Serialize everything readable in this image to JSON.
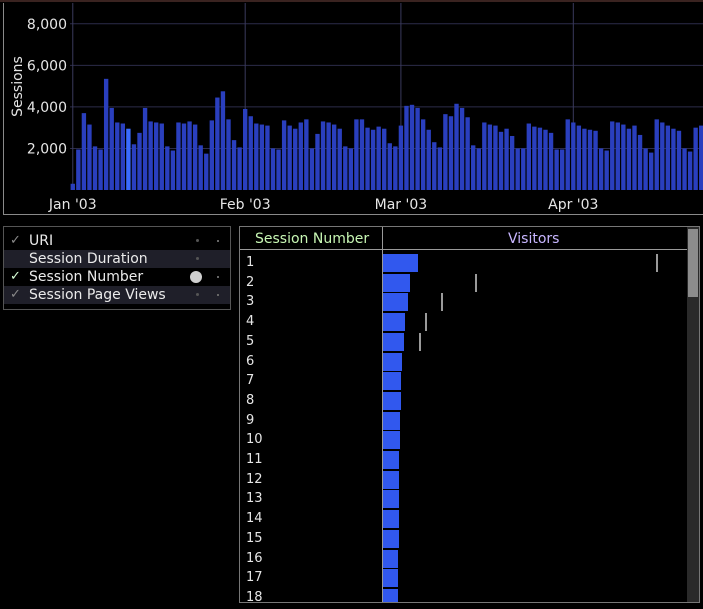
{
  "chart_data": {
    "type": "bar",
    "ylabel": "Sessions",
    "yticks": [
      "8,000",
      "6,000",
      "4,000",
      "2,000"
    ],
    "ytick_values": [
      8000,
      6000,
      4000,
      2000
    ],
    "ylim": [
      0,
      9000
    ],
    "xticks": [
      "Jan '03",
      "Feb '03",
      "Mar '03",
      "Apr '03"
    ],
    "xtick_positions": [
      0,
      31,
      59,
      90
    ],
    "highlighted_index": 10,
    "bar_color": "#2a3fbe",
    "highlight_color": "#3a6cff",
    "values": [
      300,
      1950,
      3700,
      3150,
      2100,
      1950,
      5350,
      3950,
      3250,
      3200,
      2950,
      2200,
      2750,
      3950,
      3300,
      3250,
      3200,
      2100,
      1900,
      3250,
      3200,
      3300,
      3150,
      2150,
      1750,
      3350,
      4450,
      4750,
      3400,
      2400,
      2050,
      3900,
      3550,
      3200,
      3150,
      3100,
      2000,
      1950,
      3350,
      3100,
      2950,
      3250,
      3400,
      2000,
      2700,
      3300,
      3250,
      3150,
      2950,
      2100,
      2000,
      3400,
      3400,
      3000,
      2900,
      3050,
      2950,
      2250,
      2100,
      3100,
      4050,
      4100,
      3950,
      3400,
      2900,
      2300,
      2050,
      3650,
      3550,
      4150,
      3950,
      3500,
      2150,
      2000,
      3250,
      3150,
      3100,
      2800,
      2950,
      2600,
      2000,
      2000,
      3200,
      3050,
      3000,
      2900,
      2750,
      1950,
      1950,
      3400,
      3250,
      3100,
      2950,
      2900,
      2850,
      2000,
      1900,
      3300,
      3250,
      3150,
      2950,
      3100,
      2650,
      2000,
      1800,
      3400,
      3250,
      3100,
      2950,
      2850,
      2000,
      1850,
      3000,
      3100
    ]
  },
  "attributes": [
    {
      "label": "URI",
      "checked": true,
      "active": false
    },
    {
      "label": "Session Duration",
      "checked": false,
      "active": false
    },
    {
      "label": "Session Number",
      "checked": true,
      "active": true
    },
    {
      "label": "Session Page Views",
      "checked": true,
      "active": false
    }
  ],
  "table": {
    "headers": {
      "col1": "Session Number",
      "col2": "Visitors"
    },
    "max_visitors": 100,
    "rows": [
      {
        "num": "1",
        "visitors": 100,
        "tick": 87
      },
      {
        "num": "2",
        "visitors": 78,
        "tick": 24
      },
      {
        "num": "3",
        "visitors": 70,
        "tick": 13
      },
      {
        "num": "4",
        "visitors": 64,
        "tick": 8
      },
      {
        "num": "5",
        "visitors": 60,
        "tick": 6
      },
      {
        "num": "6",
        "visitors": 55,
        "tick": null
      },
      {
        "num": "7",
        "visitors": 52,
        "tick": null
      },
      {
        "num": "8",
        "visitors": 50,
        "tick": null
      },
      {
        "num": "9",
        "visitors": 49,
        "tick": null
      },
      {
        "num": "10",
        "visitors": 48,
        "tick": null
      },
      {
        "num": "11",
        "visitors": 47,
        "tick": null
      },
      {
        "num": "12",
        "visitors": 46,
        "tick": null
      },
      {
        "num": "13",
        "visitors": 46,
        "tick": null
      },
      {
        "num": "14",
        "visitors": 45,
        "tick": null
      },
      {
        "num": "15",
        "visitors": 45,
        "tick": null
      },
      {
        "num": "16",
        "visitors": 44,
        "tick": null
      },
      {
        "num": "17",
        "visitors": 44,
        "tick": null
      },
      {
        "num": "18",
        "visitors": 43,
        "tick": null
      }
    ]
  }
}
